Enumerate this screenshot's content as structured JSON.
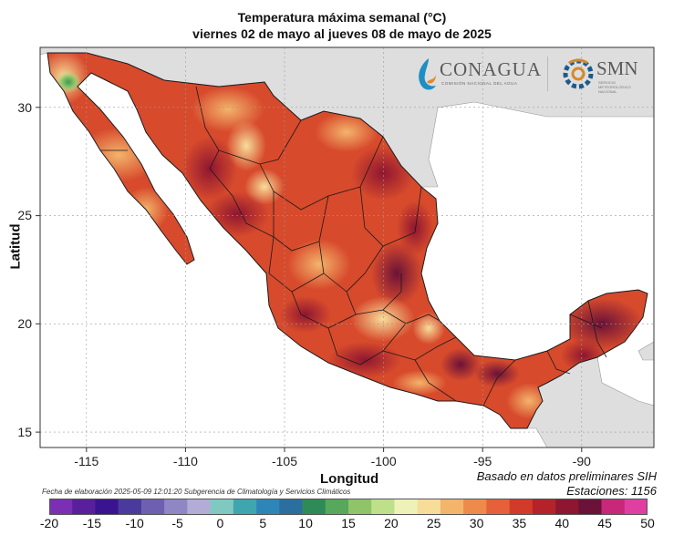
{
  "title": "Temperatura máxima semanal (°C)",
  "subtitle": "viernes 02 de mayo al jueves 08 de mayo de 2025",
  "xlabel": "Longitud",
  "ylabel": "Latitud",
  "x_ticks": [
    "-115",
    "-110",
    "-105",
    "-100",
    "-95",
    "-90"
  ],
  "y_ticks": [
    "15",
    "20",
    "25",
    "30"
  ],
  "logos": {
    "conagua": "CONAGUA",
    "conagua_sub": "COMISIÓN NACIONAL DEL AGUA",
    "smn": "SMN",
    "smn_sub": "SERVICIO METEOROLÓGICO NACIONAL"
  },
  "notes": {
    "basado": "Basado en datos preliminares SIH",
    "estaciones": "Estaciones:  1156",
    "fecha": "Fecha de elaboración 2025-05-09 12:01:20 Subgerencia de Climatología y Servicios Climáticos"
  },
  "colorbar": {
    "labels": [
      "-20",
      "-15",
      "-10",
      "-5",
      "0",
      "5",
      "10",
      "15",
      "20",
      "25",
      "30",
      "35",
      "40",
      "45",
      "50"
    ],
    "colors": [
      "#7a2fb5",
      "#5a1f9a",
      "#3a1490",
      "#4a3a9e",
      "#6f5fb0",
      "#8f86c4",
      "#b3acd6",
      "#7fc9c0",
      "#3fa6b0",
      "#2e86b8",
      "#2b6f9e",
      "#2e8b57",
      "#57a85a",
      "#8fc46a",
      "#bfe08a",
      "#eef2b8",
      "#f7dd9a",
      "#f3b46c",
      "#ee8a4a",
      "#e6603a",
      "#d23a2a",
      "#b5232a",
      "#8e1630",
      "#6a1238",
      "#c7287a",
      "#e03fa2"
    ],
    "range": [
      -20,
      50
    ]
  },
  "colors": {
    "ocean": "#ffffff",
    "land_outside": "#dedede",
    "border": "#1a1a1a"
  },
  "axes": {
    "xlim": [
      -117.2,
      -86.2
    ],
    "ylim": [
      14.3,
      32.8
    ]
  }
}
